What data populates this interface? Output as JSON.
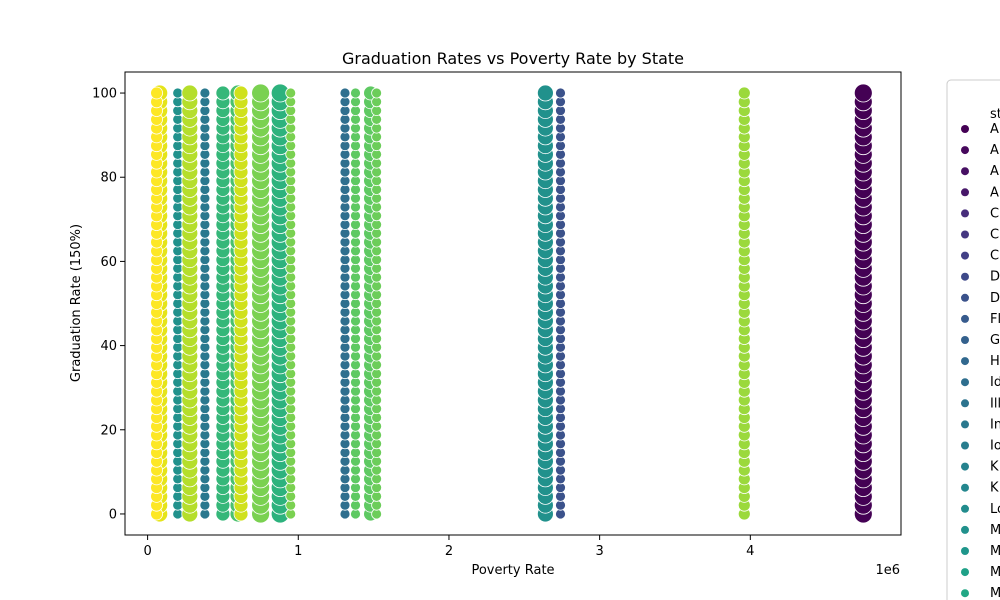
{
  "chart_data": {
    "type": "scatter",
    "title": "Graduation Rates vs Poverty Rate by State",
    "xlabel": "Poverty Rate",
    "ylabel": "Graduation Rate (150%)",
    "x_offset_label": "1e6",
    "xlim": [
      -0.15,
      5.0
    ],
    "ylim": [
      -5,
      105
    ],
    "xticks": [
      0,
      1,
      2,
      3,
      4
    ],
    "yticks": [
      0,
      20,
      40,
      60,
      80,
      100
    ],
    "grid": false,
    "legend_title": "st",
    "legend_placement": "right, outside plot",
    "legend_entries": [
      {
        "label": "Al",
        "color": "#440154"
      },
      {
        "label": "Al",
        "color": "#46085c"
      },
      {
        "label": "A",
        "color": "#471063"
      },
      {
        "label": "A",
        "color": "#48186a"
      },
      {
        "label": "C",
        "color": "#472d7b"
      },
      {
        "label": "C",
        "color": "#453781"
      },
      {
        "label": "C",
        "color": "#424086"
      },
      {
        "label": "D",
        "color": "#3e4989"
      },
      {
        "label": "D",
        "color": "#3b528b"
      },
      {
        "label": "Fl",
        "color": "#375b8d"
      },
      {
        "label": "G",
        "color": "#34618d"
      },
      {
        "label": "H",
        "color": "#31688e"
      },
      {
        "label": "Id",
        "color": "#2e6e8e"
      },
      {
        "label": "Ill",
        "color": "#2c738e"
      },
      {
        "label": "In",
        "color": "#2a788e"
      },
      {
        "label": "Io",
        "color": "#287d8e"
      },
      {
        "label": "K",
        "color": "#26828e"
      },
      {
        "label": "K",
        "color": "#24878e"
      },
      {
        "label": "Lo",
        "color": "#228c8d"
      },
      {
        "label": "M",
        "color": "#21918c"
      },
      {
        "label": "M",
        "color": "#1f968b"
      },
      {
        "label": "M",
        "color": "#1fa188"
      },
      {
        "label": "M",
        "color": "#22a785"
      }
    ],
    "series": [
      {
        "color": "#440154",
        "x": 4.75,
        "y_min": 0,
        "y_max": 100,
        "size": 9
      },
      {
        "color": "#3b528b",
        "x": 2.74,
        "y_min": 0,
        "y_max": 100,
        "size": 5
      },
      {
        "color": "#2f6f8e",
        "x": 1.31,
        "y_min": 0,
        "y_max": 100,
        "size": 5
      },
      {
        "color": "#21918c",
        "x": 2.64,
        "y_min": 0,
        "y_max": 100,
        "size": 8
      },
      {
        "color": "#2db27d",
        "x": 0.88,
        "y_min": 0,
        "y_max": 100,
        "size": 9
      },
      {
        "color": "#35b779",
        "x": 0.5,
        "y_min": 0,
        "y_max": 100,
        "size": 7
      },
      {
        "color": "#21918c",
        "x": 0.2,
        "y_min": 0,
        "y_max": 100,
        "size": 5
      },
      {
        "color": "#2a788e",
        "x": 0.38,
        "y_min": 0,
        "y_max": 100,
        "size": 5
      },
      {
        "color": "#5ec962",
        "x": 1.38,
        "y_min": 0,
        "y_max": 100,
        "size": 5
      },
      {
        "color": "#5ec962",
        "x": 1.48,
        "y_min": 0,
        "y_max": 100,
        "size": 7
      },
      {
        "color": "#6ccd5a",
        "x": 1.52,
        "y_min": 0,
        "y_max": 100,
        "size": 5
      },
      {
        "color": "#4ac16d",
        "x": 0.6,
        "y_min": 0,
        "y_max": 100,
        "size": 8
      },
      {
        "color": "#7ad151",
        "x": 0.75,
        "y_min": 0,
        "y_max": 100,
        "size": 9
      },
      {
        "color": "#7ad151",
        "x": 0.95,
        "y_min": 0,
        "y_max": 100,
        "size": 5
      },
      {
        "color": "#9bd93c",
        "x": 3.96,
        "y_min": 0,
        "y_max": 100,
        "size": 6
      },
      {
        "color": "#b5de2b",
        "x": 0.28,
        "y_min": 0,
        "y_max": 100,
        "size": 8
      },
      {
        "color": "#d0e11c",
        "x": 0.62,
        "y_min": 0,
        "y_max": 100,
        "size": 7
      },
      {
        "color": "#e5e419",
        "x": 0.08,
        "y_min": 0,
        "y_max": 100,
        "size": 8
      },
      {
        "color": "#fde725",
        "x": 0.06,
        "y_min": 0,
        "y_max": 100,
        "size": 6
      }
    ]
  }
}
